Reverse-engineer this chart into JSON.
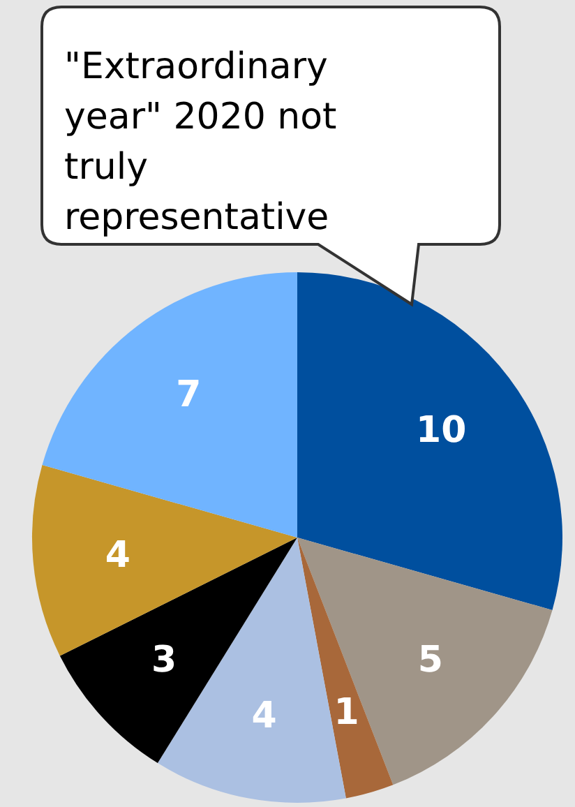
{
  "chart_data": {
    "type": "pie",
    "categories": [
      null,
      null,
      null,
      null,
      null,
      null,
      null
    ],
    "values": [
      10,
      5,
      1,
      4,
      3,
      4,
      7
    ],
    "colors": [
      "#004f9e",
      "#a09588",
      "#a8683a",
      "#abc0e2",
      "#000000",
      "#c6962a",
      "#70b4ff"
    ],
    "data_labels": true,
    "annotations": [
      "\"Extraordinary year\" 2020 not truly representative"
    ]
  }
}
